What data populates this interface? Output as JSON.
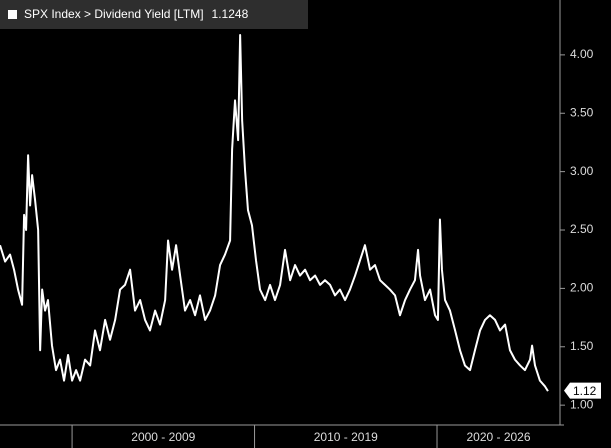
{
  "chart_data": {
    "type": "line",
    "series": [
      {
        "name": "SPX Index > Dividend Yield [LTM]",
        "color": "#ffffff",
        "last_value": 1.1248,
        "last_value_label": "1.12",
        "x": [
          1996.05,
          1996.33,
          1996.6,
          1996.82,
          1997.04,
          1997.26,
          1997.37,
          1997.48,
          1997.59,
          1997.7,
          1997.81,
          1997.97,
          1998.14,
          1998.25,
          1998.36,
          1998.52,
          1998.68,
          1998.9,
          1999.12,
          1999.34,
          1999.56,
          1999.78,
          2000.0,
          2000.22,
          2000.44,
          2000.71,
          2000.99,
          2001.26,
          2001.53,
          2001.81,
          2002.08,
          2002.36,
          2002.63,
          2002.9,
          2003.18,
          2003.45,
          2003.73,
          2004.0,
          2004.27,
          2004.55,
          2004.82,
          2005.1,
          2005.26,
          2005.48,
          2005.7,
          2005.92,
          2006.19,
          2006.47,
          2006.74,
          2007.01,
          2007.29,
          2007.56,
          2007.84,
          2008.11,
          2008.38,
          2008.66,
          2008.77,
          2008.93,
          2009.1,
          2009.21,
          2009.32,
          2009.48,
          2009.64,
          2009.86,
          2010.08,
          2010.3,
          2010.58,
          2010.85,
          2011.12,
          2011.4,
          2011.67,
          2011.95,
          2012.22,
          2012.49,
          2012.77,
          2013.04,
          2013.32,
          2013.59,
          2013.86,
          2014.14,
          2014.41,
          2014.68,
          2014.96,
          2015.23,
          2015.51,
          2015.78,
          2016.05,
          2016.33,
          2016.6,
          2016.88,
          2017.15,
          2017.42,
          2017.7,
          2017.97,
          2018.25,
          2018.52,
          2018.79,
          2018.96,
          2019.07,
          2019.34,
          2019.62,
          2019.89,
          2020.05,
          2020.16,
          2020.27,
          2020.44,
          2020.71,
          2020.99,
          2021.26,
          2021.53,
          2021.81,
          2022.08,
          2022.36,
          2022.63,
          2022.9,
          2023.18,
          2023.45,
          2023.73,
          2024.0,
          2024.27,
          2024.55,
          2024.82,
          2025.1,
          2025.21,
          2025.37,
          2025.64,
          2025.92,
          2026.08
        ],
        "values": [
          2.37,
          2.23,
          2.29,
          2.16,
          1.99,
          1.86,
          2.63,
          2.5,
          3.14,
          2.71,
          2.97,
          2.76,
          2.5,
          1.47,
          1.99,
          1.81,
          1.9,
          1.51,
          1.3,
          1.39,
          1.21,
          1.43,
          1.21,
          1.3,
          1.21,
          1.39,
          1.34,
          1.64,
          1.47,
          1.73,
          1.56,
          1.73,
          1.99,
          2.03,
          2.16,
          1.81,
          1.9,
          1.73,
          1.64,
          1.81,
          1.69,
          1.9,
          2.41,
          2.16,
          2.37,
          2.11,
          1.81,
          1.9,
          1.77,
          1.94,
          1.73,
          1.81,
          1.94,
          2.2,
          2.29,
          2.41,
          3.19,
          3.61,
          3.27,
          4.17,
          3.44,
          3.01,
          2.67,
          2.54,
          2.24,
          1.99,
          1.9,
          2.03,
          1.9,
          2.03,
          2.33,
          2.07,
          2.2,
          2.11,
          2.16,
          2.07,
          2.11,
          2.03,
          2.07,
          2.03,
          1.94,
          1.99,
          1.9,
          1.99,
          2.11,
          2.24,
          2.37,
          2.16,
          2.2,
          2.07,
          2.03,
          1.99,
          1.94,
          1.77,
          1.9,
          1.99,
          2.07,
          2.33,
          2.11,
          1.9,
          1.99,
          1.77,
          1.73,
          2.59,
          2.16,
          1.9,
          1.81,
          1.64,
          1.47,
          1.34,
          1.3,
          1.47,
          1.64,
          1.73,
          1.77,
          1.73,
          1.64,
          1.69,
          1.47,
          1.39,
          1.34,
          1.3,
          1.39,
          1.51,
          1.34,
          1.21,
          1.16,
          1.12
        ]
      }
    ],
    "xlim": [
      1996.05,
      2026.74
    ],
    "xticks": [
      2000,
      2010,
      2020
    ],
    "x_periods": [
      {
        "label": "2000 - 2009",
        "from": 2000,
        "to": 2010
      },
      {
        "label": "2010 - 2019",
        "from": 2010,
        "to": 2020
      },
      {
        "label": "2020 - 2026",
        "from": 2020,
        "to": 2027
      }
    ],
    "ylim": [
      0.83,
      4.47
    ],
    "yticks": [
      {
        "value": 1,
        "label": "1.00"
      },
      {
        "value": 1.5,
        "label": "1.50"
      },
      {
        "value": 2,
        "label": "2.00"
      },
      {
        "value": 2.5,
        "label": "2.50"
      },
      {
        "value": 3,
        "label": "3.00"
      },
      {
        "value": 3.5,
        "label": "3.50"
      },
      {
        "value": 4,
        "label": "4.00"
      }
    ]
  }
}
